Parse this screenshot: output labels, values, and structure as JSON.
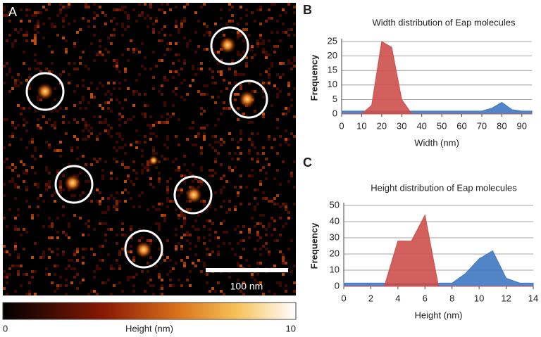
{
  "panel_a": {
    "label": "A",
    "scale_bar": "100 nm",
    "colorbar": {
      "label": "Height (nm)",
      "lim": [
        0,
        10
      ],
      "ticks": [
        0,
        10
      ]
    }
  },
  "chart_data": [
    {
      "type": "area",
      "panel": "B",
      "title": "Width distribution of Eap molecules",
      "x_label": "Width (nm)",
      "y_label": "Frequency",
      "x": [
        0,
        5,
        10,
        15,
        20,
        25,
        30,
        35,
        40,
        45,
        50,
        55,
        60,
        65,
        70,
        75,
        80,
        85,
        90,
        95
      ],
      "series": [
        {
          "color": "#3f78c1",
          "values": [
            1,
            1,
            1,
            1,
            1,
            1,
            1,
            1,
            1,
            1,
            1,
            1,
            1,
            1,
            1,
            2,
            4,
            1.5,
            1,
            1
          ]
        },
        {
          "color": "#cd4f4b",
          "values": [
            0,
            0,
            0,
            3,
            25,
            23,
            5,
            0,
            0,
            0,
            0,
            0,
            0,
            0,
            0,
            0,
            0,
            0,
            0,
            0
          ]
        }
      ],
      "xlim": [
        0,
        95
      ],
      "xticks": [
        0,
        10,
        20,
        30,
        40,
        50,
        60,
        70,
        80,
        90
      ],
      "ylim": [
        0,
        25
      ],
      "yticks": [
        0,
        5,
        10,
        15,
        20,
        25
      ],
      "grid": true
    },
    {
      "type": "area",
      "panel": "C",
      "title": "Height distribution of Eap molecules",
      "x_label": "Height (nm)",
      "y_label": "Frequency",
      "x": [
        0,
        1,
        2,
        3,
        4,
        5,
        6,
        7,
        8,
        9,
        10,
        11,
        12,
        13,
        14
      ],
      "series": [
        {
          "color": "#3f78c1",
          "values": [
            2,
            2,
            2,
            2,
            2,
            2,
            2,
            2,
            2,
            8,
            17,
            22,
            5,
            2,
            2
          ]
        },
        {
          "color": "#cd4f4b",
          "values": [
            0,
            0,
            0,
            0,
            28,
            28,
            44,
            0,
            0,
            0,
            0,
            0,
            0,
            0,
            0
          ]
        }
      ],
      "xlim": [
        0,
        14
      ],
      "xticks": [
        0,
        2,
        4,
        6,
        8,
        10,
        12,
        14
      ],
      "ylim": [
        0,
        50
      ],
      "yticks": [
        0,
        10,
        20,
        30,
        40,
        50
      ],
      "grid": true
    }
  ]
}
